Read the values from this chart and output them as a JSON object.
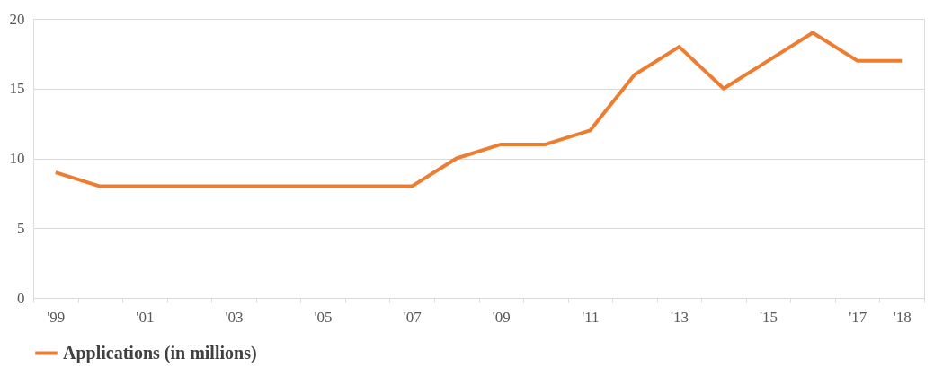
{
  "chart_data": {
    "type": "line",
    "categories": [
      "'99",
      null,
      "'01",
      null,
      "'03",
      null,
      "'05",
      null,
      "'07",
      null,
      "'09",
      null,
      "'11",
      null,
      "'13",
      null,
      "'15",
      null,
      "'17",
      "'18"
    ],
    "series": [
      {
        "name": "Applications (in millions)",
        "color": "#ed7d31",
        "values": [
          9,
          8,
          8,
          8,
          8,
          8,
          8,
          8,
          8,
          10,
          11,
          11,
          12,
          16,
          18,
          15,
          17,
          19,
          17,
          17
        ]
      }
    ],
    "ylim": [
      0,
      20
    ],
    "yticks": [
      0,
      5,
      10,
      15,
      20
    ],
    "grid": "y",
    "legend": "bottom",
    "marker": "none",
    "line_style": "solid"
  }
}
